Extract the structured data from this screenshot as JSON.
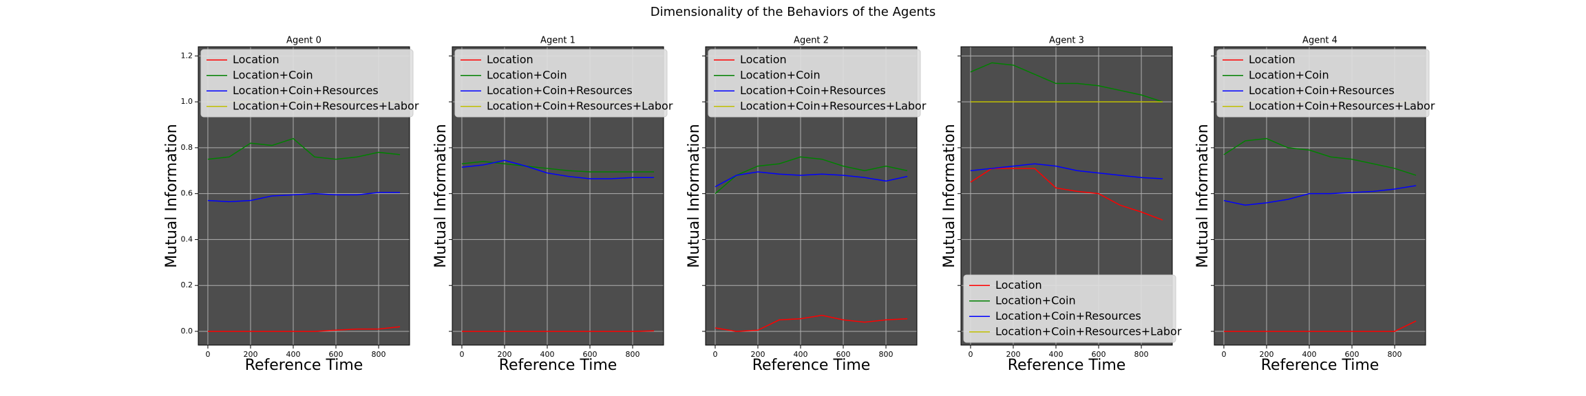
{
  "title": "Dimensionality of the Behaviors of the Agents",
  "chart_data": [
    {
      "type": "line",
      "title": "Agent 0",
      "xlabel": "Reference Time",
      "ylabel": "Mutual Information",
      "x": [
        0,
        100,
        200,
        300,
        400,
        500,
        600,
        700,
        800,
        900
      ],
      "xlim": [
        -45,
        945
      ],
      "xticks": [
        0,
        200,
        400,
        600,
        800
      ],
      "ylim": [
        -0.06,
        1.24
      ],
      "yticks": [
        {
          "value": 0,
          "label": "0.0"
        },
        0.2,
        0.4,
        0.6,
        0.8,
        {
          "value": 1,
          "label": "1.0"
        },
        1.2
      ],
      "show_ytick_labels": true,
      "grid": true,
      "legend": "upper left",
      "series": [
        {
          "name": "Location",
          "color": "#ff0000",
          "values": [
            0,
            0,
            0,
            0,
            0,
            0,
            0.005,
            0.01,
            0.01,
            0.02
          ]
        },
        {
          "name": "Location+Coin",
          "color": "#008000",
          "values": [
            0.75,
            0.76,
            0.82,
            0.81,
            0.84,
            0.76,
            0.75,
            0.76,
            0.78,
            0.77
          ]
        },
        {
          "name": "Location+Coin+Resources",
          "color": "#0000ff",
          "values": [
            0.57,
            0.565,
            0.57,
            0.59,
            0.595,
            0.6,
            0.595,
            0.595,
            0.605,
            0.605
          ]
        },
        {
          "name": "Location+Coin+Resources+Labor",
          "color": "#bfbf00",
          "values": [
            1,
            1,
            1,
            1,
            1,
            1,
            1,
            1,
            1,
            1
          ]
        }
      ]
    },
    {
      "type": "line",
      "title": "Agent 1",
      "xlabel": "Reference Time",
      "ylabel": "Mutual Information",
      "x": [
        0,
        100,
        200,
        300,
        400,
        500,
        600,
        700,
        800,
        900
      ],
      "xlim": [
        -45,
        945
      ],
      "xticks": [
        0,
        200,
        400,
        600,
        800
      ],
      "ylim": [
        -0.06,
        1.24
      ],
      "yticks": [
        0,
        0.2,
        0.4,
        0.6,
        0.8,
        1,
        1.2
      ],
      "show_ytick_labels": false,
      "grid": true,
      "legend": "upper left",
      "series": [
        {
          "name": "Location",
          "color": "#ff0000",
          "values": [
            0,
            0,
            0,
            0,
            0,
            0,
            0,
            0,
            0,
            0.002
          ]
        },
        {
          "name": "Location+Coin",
          "color": "#008000",
          "values": [
            0.73,
            0.74,
            0.73,
            0.72,
            0.71,
            0.7,
            0.695,
            0.695,
            0.695,
            0.695
          ]
        },
        {
          "name": "Location+Coin+Resources",
          "color": "#0000ff",
          "values": [
            0.715,
            0.725,
            0.745,
            0.72,
            0.69,
            0.675,
            0.665,
            0.665,
            0.67,
            0.67
          ]
        },
        {
          "name": "Location+Coin+Resources+Labor",
          "color": "#bfbf00",
          "values": [
            1,
            1,
            1,
            1,
            1,
            1,
            1,
            1,
            1,
            1
          ]
        }
      ]
    },
    {
      "type": "line",
      "title": "Agent 2",
      "xlabel": "Reference Time",
      "ylabel": "Mutual Information",
      "x": [
        0,
        100,
        200,
        300,
        400,
        500,
        600,
        700,
        800,
        900
      ],
      "xlim": [
        -45,
        945
      ],
      "xticks": [
        0,
        200,
        400,
        600,
        800
      ],
      "ylim": [
        -0.06,
        1.24
      ],
      "yticks": [
        0,
        0.2,
        0.4,
        0.6,
        0.8,
        1,
        1.2
      ],
      "show_ytick_labels": false,
      "grid": true,
      "legend": "upper left",
      "series": [
        {
          "name": "Location",
          "color": "#ff0000",
          "values": [
            0.015,
            0,
            0.005,
            0.05,
            0.055,
            0.07,
            0.05,
            0.04,
            0.05,
            0.055
          ]
        },
        {
          "name": "Location+Coin",
          "color": "#008000",
          "values": [
            0.6,
            0.68,
            0.72,
            0.73,
            0.76,
            0.75,
            0.72,
            0.7,
            0.72,
            0.7
          ]
        },
        {
          "name": "Location+Coin+Resources",
          "color": "#0000ff",
          "values": [
            0.63,
            0.68,
            0.695,
            0.685,
            0.68,
            0.685,
            0.68,
            0.67,
            0.655,
            0.675
          ]
        },
        {
          "name": "Location+Coin+Resources+Labor",
          "color": "#bfbf00",
          "values": [
            1,
            1,
            1,
            1,
            1,
            1,
            1,
            1,
            1,
            1
          ]
        }
      ]
    },
    {
      "type": "line",
      "title": "Agent 3",
      "xlabel": "Reference Time",
      "ylabel": "Mutual Information",
      "x": [
        0,
        100,
        200,
        300,
        400,
        500,
        600,
        700,
        800,
        900
      ],
      "xlim": [
        -45,
        945
      ],
      "xticks": [
        0,
        200,
        400,
        600,
        800
      ],
      "ylim": [
        -0.06,
        1.24
      ],
      "yticks": [
        0,
        0.2,
        0.4,
        0.6,
        0.8,
        1,
        1.2
      ],
      "show_ytick_labels": false,
      "grid": true,
      "legend": "lower left",
      "series": [
        {
          "name": "Location",
          "color": "#ff0000",
          "values": [
            0.65,
            0.71,
            0.71,
            0.71,
            0.625,
            0.61,
            0.6,
            0.55,
            0.52,
            0.485
          ]
        },
        {
          "name": "Location+Coin",
          "color": "#008000",
          "values": [
            1.13,
            1.17,
            1.16,
            1.12,
            1.08,
            1.08,
            1.07,
            1.05,
            1.03,
            1
          ]
        },
        {
          "name": "Location+Coin+Resources",
          "color": "#0000ff",
          "values": [
            0.7,
            0.71,
            0.72,
            0.73,
            0.72,
            0.7,
            0.69,
            0.68,
            0.67,
            0.665
          ]
        },
        {
          "name": "Location+Coin+Resources+Labor",
          "color": "#bfbf00",
          "values": [
            1,
            1,
            1,
            1,
            1,
            1,
            1,
            1,
            1,
            1
          ]
        }
      ]
    },
    {
      "type": "line",
      "title": "Agent 4",
      "xlabel": "Reference Time",
      "ylabel": "Mutual Information",
      "x": [
        0,
        100,
        200,
        300,
        400,
        500,
        600,
        700,
        800,
        900
      ],
      "xlim": [
        -45,
        945
      ],
      "xticks": [
        0,
        200,
        400,
        600,
        800
      ],
      "ylim": [
        -0.06,
        1.24
      ],
      "yticks": [
        0,
        0.2,
        0.4,
        0.6,
        0.8,
        1,
        1.2
      ],
      "show_ytick_labels": false,
      "grid": true,
      "legend": "upper left",
      "series": [
        {
          "name": "Location",
          "color": "#ff0000",
          "values": [
            0,
            0,
            0,
            0,
            0,
            0,
            0,
            0,
            0,
            0.045
          ]
        },
        {
          "name": "Location+Coin",
          "color": "#008000",
          "values": [
            0.77,
            0.83,
            0.84,
            0.8,
            0.79,
            0.76,
            0.75,
            0.73,
            0.71,
            0.68
          ]
        },
        {
          "name": "Location+Coin+Resources",
          "color": "#0000ff",
          "values": [
            0.57,
            0.55,
            0.56,
            0.575,
            0.6,
            0.6,
            0.605,
            0.61,
            0.62,
            0.635
          ]
        },
        {
          "name": "Location+Coin+Resources+Labor",
          "color": "#bfbf00",
          "values": [
            1,
            1,
            1,
            1,
            1,
            1,
            1,
            1,
            1,
            1
          ]
        }
      ]
    }
  ]
}
